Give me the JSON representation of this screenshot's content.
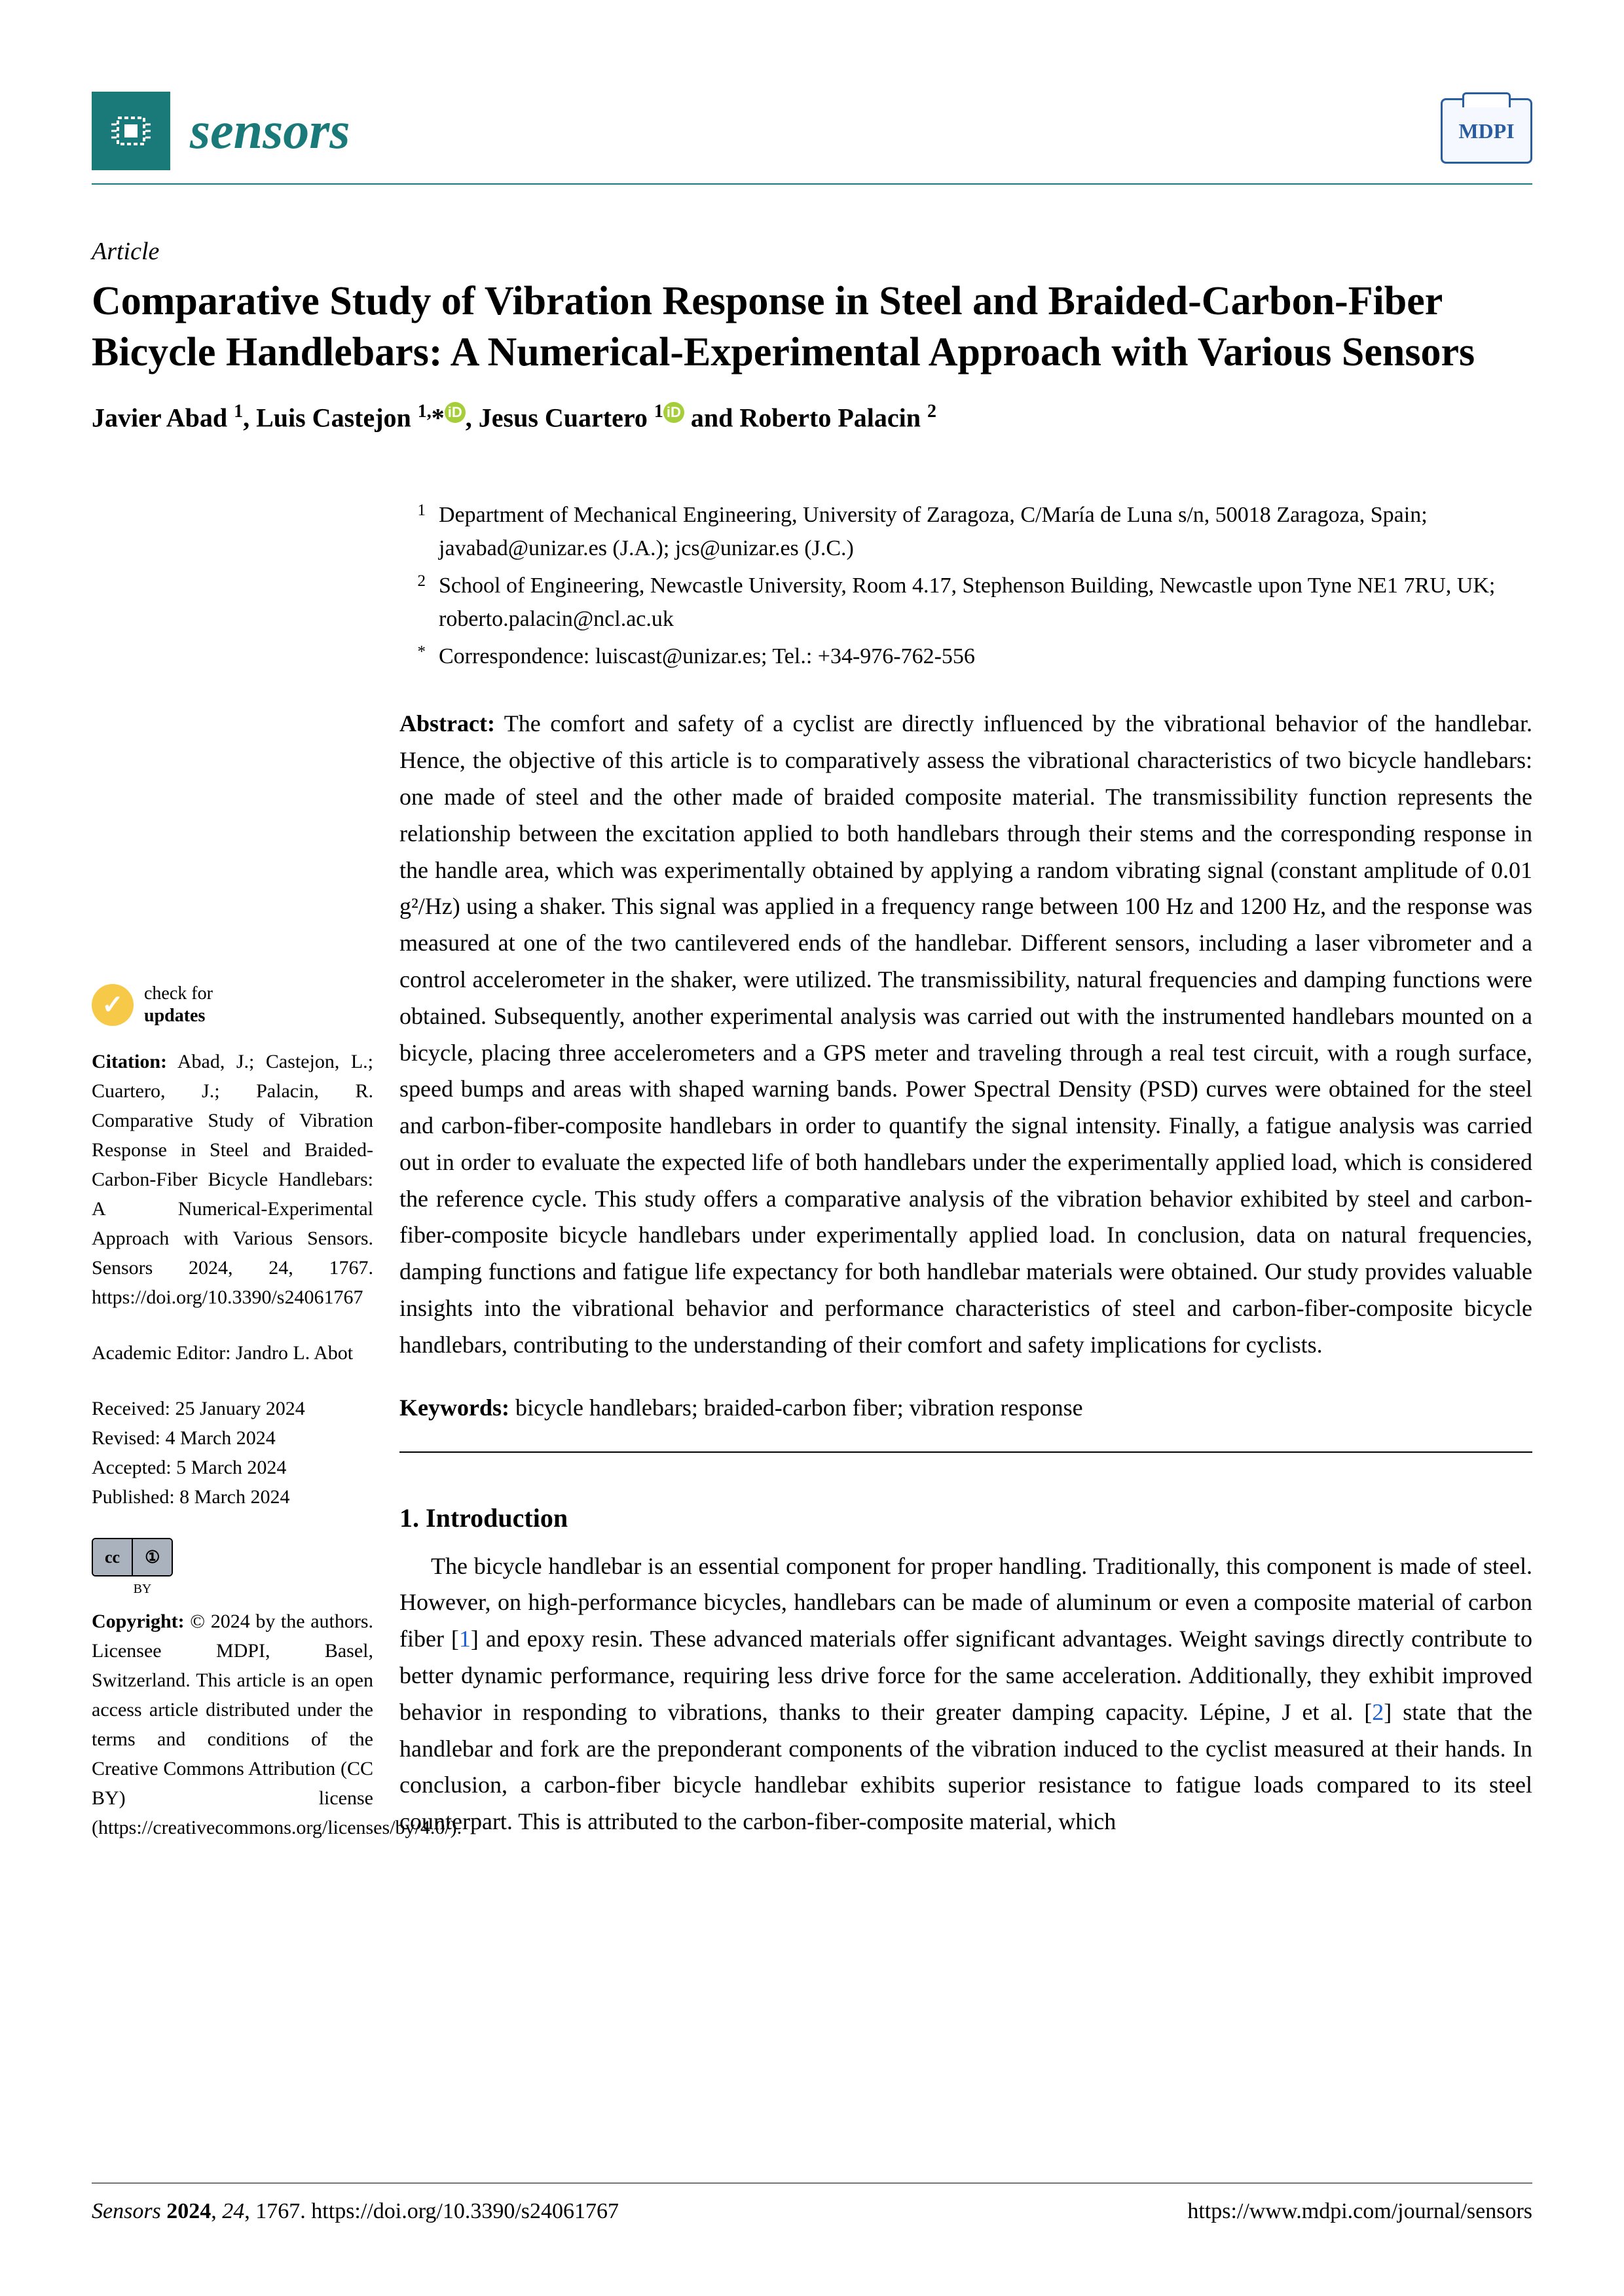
{
  "journal": {
    "name": "sensors",
    "publisher_logo": "MDPI",
    "accent_color": "#1a7a7a",
    "link_color": "#1a5fd6"
  },
  "article": {
    "type": "Article",
    "title": "Comparative Study of Vibration Response in Steel and Braided-Carbon-Fiber Bicycle Handlebars: A Numerical-Experimental Approach with Various Sensors",
    "authors_html": "Javier Abad <sup>1</sup>, Luis Castejon <sup>1,</sup>*<span class='orcid' data-name='orcid-icon' data-interactable='false'>iD</span>, Jesus Cuartero <sup>1</sup><span class='orcid' data-name='orcid-icon' data-interactable='false'>iD</span> and Roberto Palacin <sup>2</sup>",
    "affiliations": [
      {
        "marker": "1",
        "text": "Department of Mechanical Engineering, University of Zaragoza, C/María de Luna s/n, 50018 Zaragoza, Spain; javabad@unizar.es (J.A.); jcs@unizar.es (J.C.)"
      },
      {
        "marker": "2",
        "text": "School of Engineering, Newcastle University, Room 4.17, Stephenson Building, Newcastle upon Tyne NE1 7RU, UK; roberto.palacin@ncl.ac.uk"
      },
      {
        "marker": "*",
        "text": "Correspondence: luiscast@unizar.es; Tel.: +34-976-762-556"
      }
    ],
    "abstract_label": "Abstract:",
    "abstract": "The comfort and safety of a cyclist are directly influenced by the vibrational behavior of the handlebar. Hence, the objective of this article is to comparatively assess the vibrational characteristics of two bicycle handlebars: one made of steel and the other made of braided composite material. The transmissibility function represents the relationship between the excitation applied to both handlebars through their stems and the corresponding response in the handle area, which was experimentally obtained by applying a random vibrating signal (constant amplitude of 0.01 g²/Hz) using a shaker. This signal was applied in a frequency range between 100 Hz and 1200 Hz, and the response was measured at one of the two cantilevered ends of the handlebar. Different sensors, including a laser vibrometer and a control accelerometer in the shaker, were utilized. The transmissibility, natural frequencies and damping functions were obtained. Subsequently, another experimental analysis was carried out with the instrumented handlebars mounted on a bicycle, placing three accelerometers and a GPS meter and traveling through a real test circuit, with a rough surface, speed bumps and areas with shaped warning bands. Power Spectral Density (PSD) curves were obtained for the steel and carbon-fiber-composite handlebars in order to quantify the signal intensity. Finally, a fatigue analysis was carried out in order to evaluate the expected life of both handlebars under the experimentally applied load, which is considered the reference cycle. This study offers a comparative analysis of the vibration behavior exhibited by steel and carbon-fiber-composite bicycle handlebars under experimentally applied load. In conclusion, data on natural frequencies, damping functions and fatigue life expectancy for both handlebar materials were obtained. Our study provides valuable insights into the vibrational behavior and performance characteristics of steel and carbon-fiber-composite bicycle handlebars, contributing to the understanding of their comfort and safety implications for cyclists.",
    "keywords_label": "Keywords:",
    "keywords": "bicycle handlebars; braided-carbon fiber; vibration response",
    "section1_heading": "1. Introduction",
    "intro_pre": "The bicycle handlebar is an essential component for proper handling. Traditionally, this component is made of steel. However, on high-performance bicycles, handlebars can be made of aluminum or even a composite material of carbon fiber [",
    "ref1": "1",
    "intro_mid": "] and epoxy resin. These advanced materials offer significant advantages. Weight savings directly contribute to better dynamic performance, requiring less drive force for the same acceleration. Additionally, they exhibit improved behavior in responding to vibrations, thanks to their greater damping capacity. Lépine, J et al. [",
    "ref2": "2",
    "intro_post": "] state that the handlebar and fork are the preponderant components of the vibration induced to the cyclist measured at their hands. In conclusion, a carbon-fiber bicycle handlebar exhibits superior resistance to fatigue loads compared to its steel counterpart. This is attributed to the carbon-fiber-composite material, which"
  },
  "sidebar": {
    "check_updates_line1": "check for",
    "check_updates_line2": "updates",
    "citation_label": "Citation:",
    "citation": "Abad, J.; Castejon, L.; Cuartero, J.; Palacin, R. Comparative Study of Vibration Response in Steel and Braided-Carbon-Fiber Bicycle Handlebars: A Numerical-Experimental Approach with Various Sensors. Sensors 2024, 24, 1767. https://doi.org/10.3390/s24061767",
    "editor_label": "Academic Editor:",
    "editor": "Jandro L. Abot",
    "received": "Received: 25 January 2024",
    "revised": "Revised: 4 March 2024",
    "accepted": "Accepted: 5 March 2024",
    "published": "Published: 8 March 2024",
    "cc_left": "cc",
    "cc_right": "①",
    "cc_by": "BY",
    "copyright_label": "Copyright:",
    "copyright": "© 2024 by the authors. Licensee MDPI, Basel, Switzerland. This article is an open access article distributed under the terms and conditions of the Creative Commons Attribution (CC BY) license (https://creativecommons.org/licenses/by/4.0/)."
  },
  "footer": {
    "left": "Sensors 2024, 24, 1767. https://doi.org/10.3390/s24061767",
    "right": "https://www.mdpi.com/journal/sensors"
  }
}
